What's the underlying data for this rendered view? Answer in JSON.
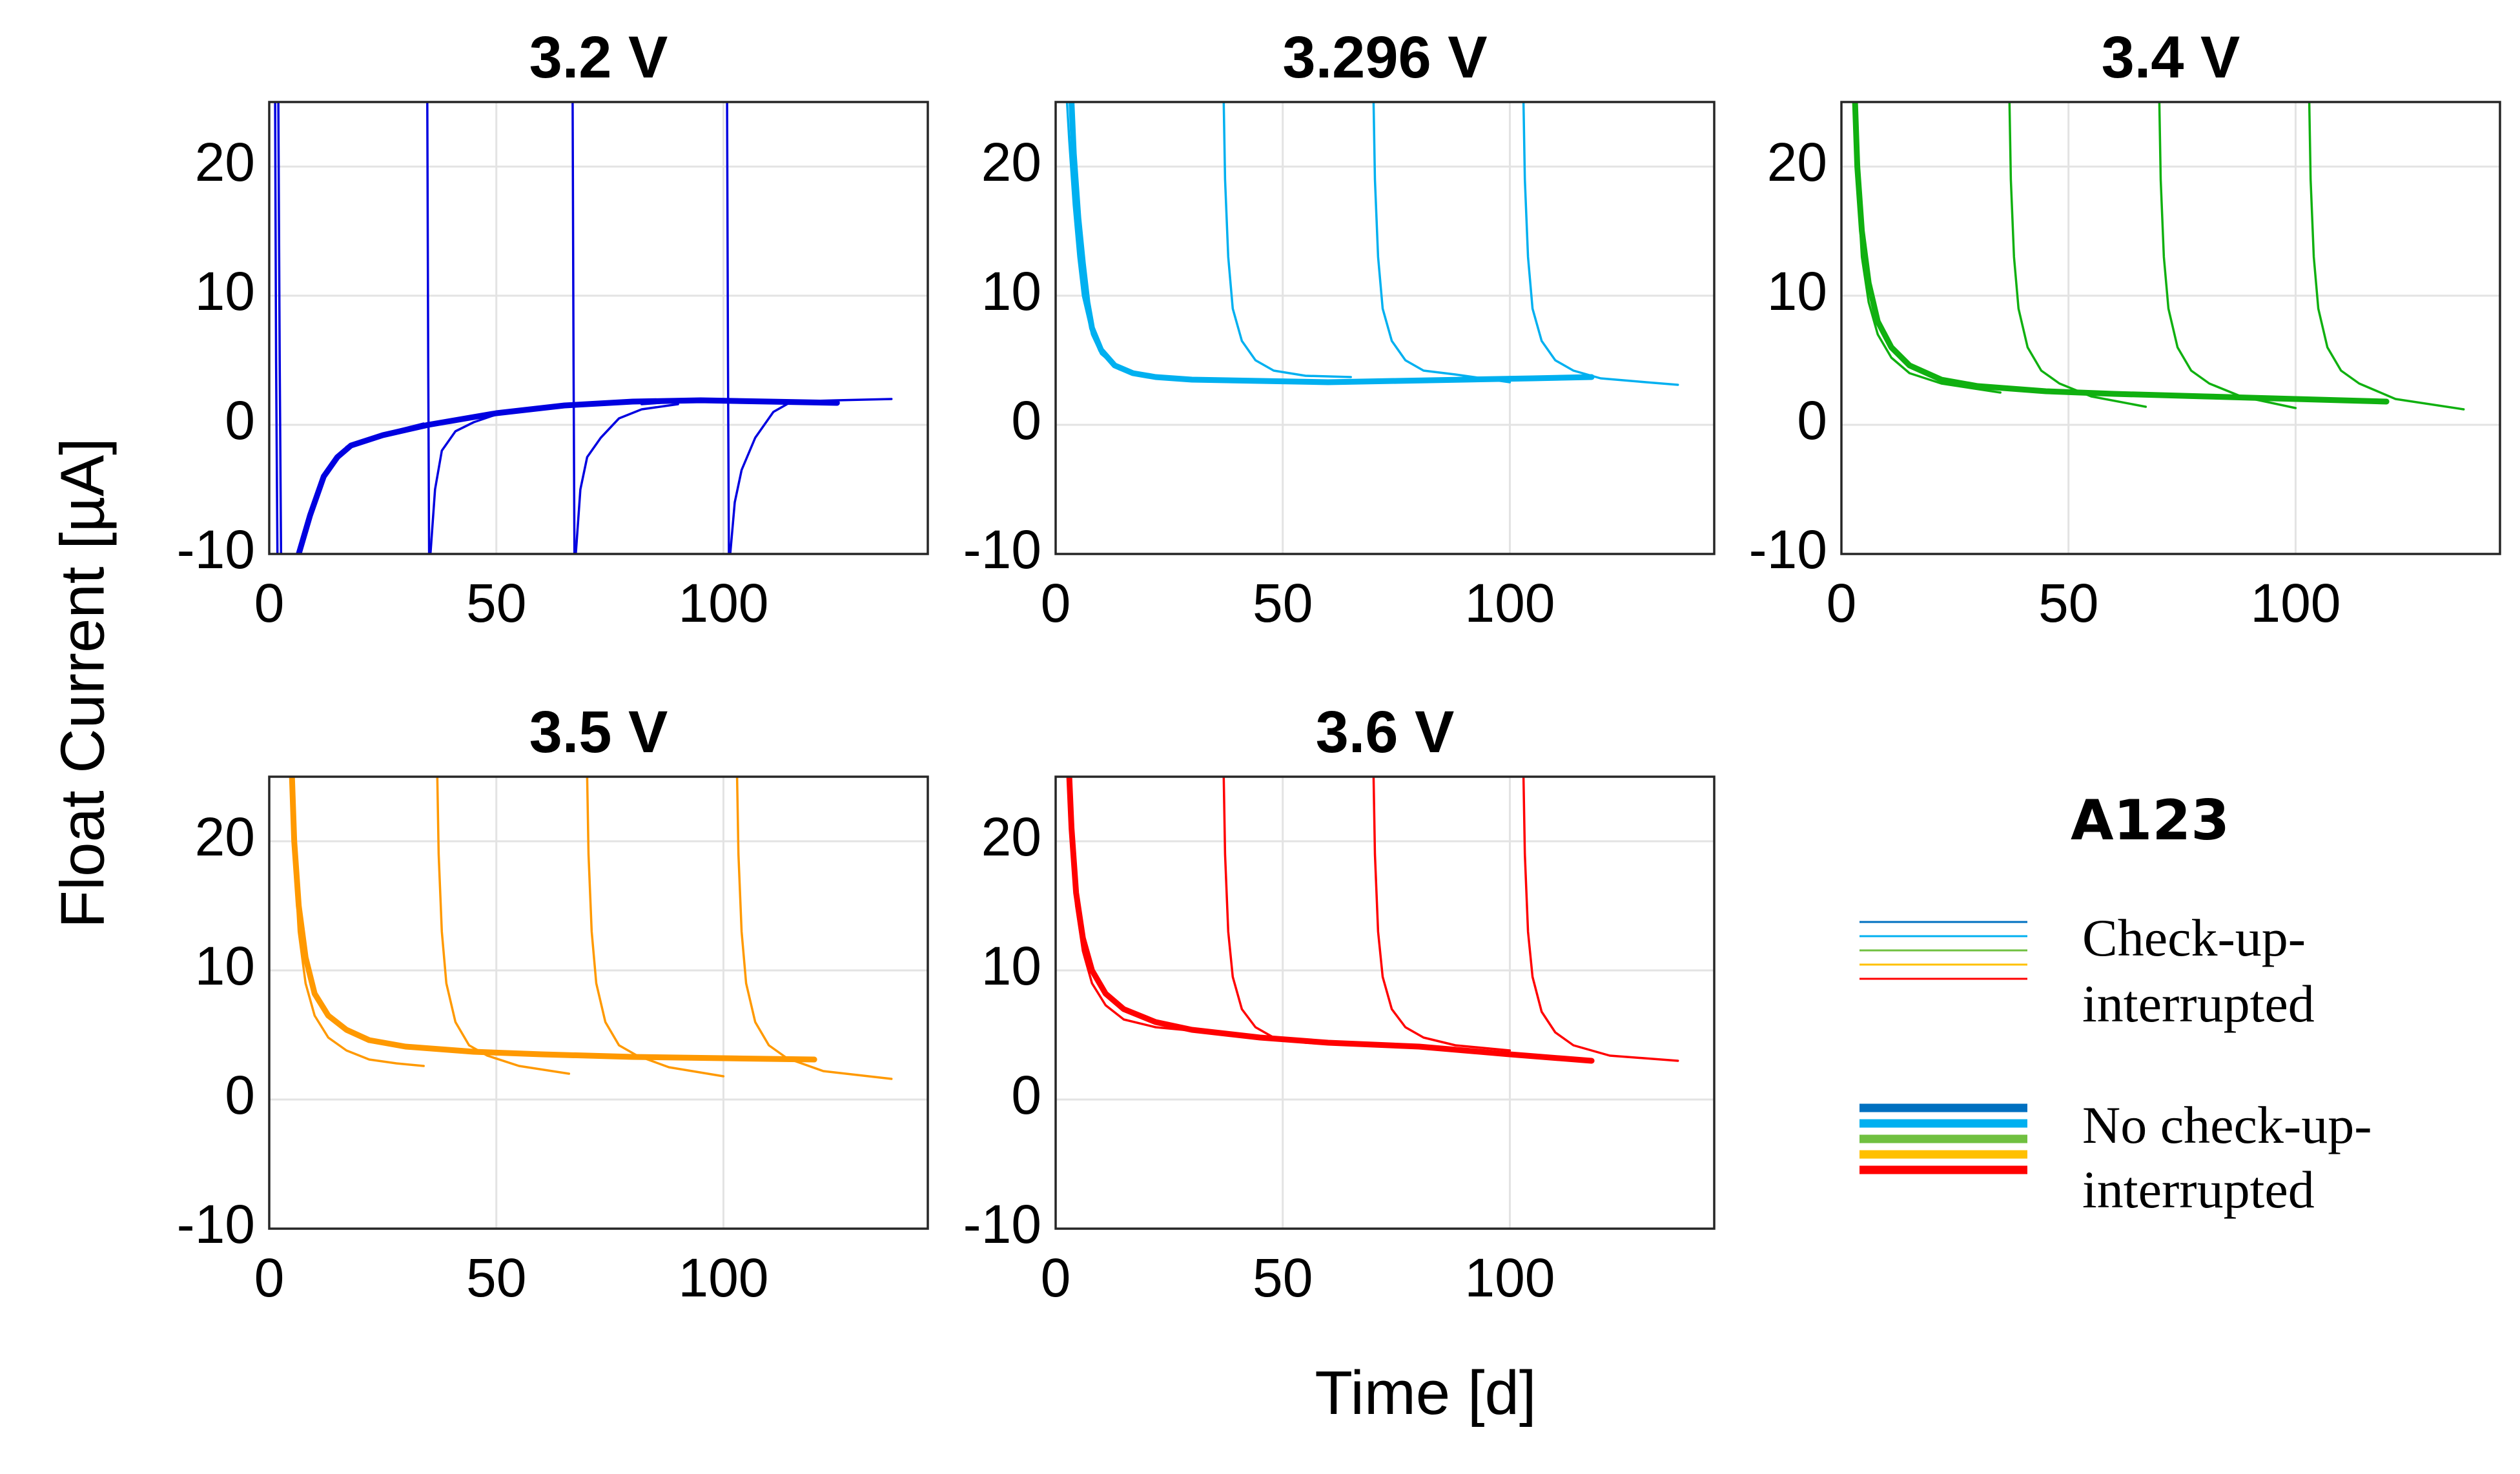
{
  "figure": {
    "xlabel": "Time [d]",
    "ylabel": "Float Current [µA]",
    "legend": {
      "title": "A123",
      "interrupted_label_line1": "Check-up-",
      "interrupted_label_line2": "interrupted",
      "continuous_label_line1": "No check-up-",
      "continuous_label_line2": "interrupted",
      "colors": [
        "#0070c0",
        "#00b0f0",
        "#70c040",
        "#ffc000",
        "#ff0000"
      ]
    }
  },
  "chart_data": [
    {
      "type": "line",
      "title": "3.2 V",
      "color": "#0000e0",
      "xlim": [
        0,
        145
      ],
      "ylim": [
        -10,
        25
      ],
      "xticks": [
        "0",
        "50",
        "100"
      ],
      "xtick_values": [
        0,
        50,
        100
      ],
      "yticks": [
        "-10",
        "0",
        "10",
        "20"
      ],
      "ytick_values": [
        -10,
        0,
        10,
        20
      ],
      "series": [
        {
          "name": "Check-up-interrupted",
          "weight": "thin",
          "x": [
            1.3,
            1.5,
            1.8
          ],
          "y": [
            25,
            5,
            -10
          ]
        },
        {
          "name": "Check-up-interrupted",
          "weight": "thin",
          "x": [
            34.8,
            35.0,
            35.2
          ],
          "y": [
            25,
            5,
            -10
          ]
        },
        {
          "name": "Check-up-interrupted",
          "weight": "thin",
          "x": [
            66.8,
            67.0,
            67.2
          ],
          "y": [
            25,
            5,
            -10
          ]
        },
        {
          "name": "Check-up-interrupted",
          "weight": "thin",
          "x": [
            100.8,
            101.0,
            101.2
          ],
          "y": [
            25,
            5,
            -10
          ]
        },
        {
          "name": "Check-up-interrupted",
          "weight": "thin",
          "x": [
            2.0,
            2.3,
            2.6
          ],
          "y": [
            25,
            5,
            -10
          ]
        },
        {
          "name": "Check-up-interrupted",
          "weight": "thin",
          "x": [
            35.5,
            36.5,
            38,
            41,
            45,
            50
          ],
          "y": [
            -10,
            -5,
            -2,
            -0.5,
            0.2,
            0.8
          ]
        },
        {
          "name": "Check-up-interrupted",
          "weight": "thin",
          "x": [
            67.5,
            68.5,
            70,
            73,
            77,
            82,
            90
          ],
          "y": [
            -10,
            -5,
            -2.5,
            -1,
            0.5,
            1.2,
            1.6
          ]
        },
        {
          "name": "Check-up-interrupted",
          "weight": "thin",
          "x": [
            101.5,
            102.5,
            104,
            107,
            111,
            115
          ],
          "y": [
            -10,
            -6,
            -3.5,
            -1,
            1,
            1.8
          ]
        },
        {
          "name": "Check-up-interrupted",
          "weight": "thin",
          "x": [
            17,
            25,
            34
          ],
          "y": [
            -1.7,
            -0.7,
            0.1
          ]
        },
        {
          "name": "Check-up-interrupted",
          "weight": "thin",
          "x": [
            50,
            57,
            66
          ],
          "y": [
            0.8,
            1.2,
            1.6
          ]
        },
        {
          "name": "Check-up-interrupted",
          "weight": "thin",
          "x": [
            82,
            90,
            100
          ],
          "y": [
            1.6,
            1.8,
            1.9
          ]
        },
        {
          "name": "Check-up-interrupted",
          "weight": "thin",
          "x": [
            115,
            125,
            137
          ],
          "y": [
            1.8,
            1.9,
            2.0
          ]
        },
        {
          "name": "No check-up-interrupted",
          "weight": "thick",
          "x": [
            6.5,
            9,
            12,
            15,
            18,
            25,
            35,
            50,
            65,
            80,
            95,
            110,
            125
          ],
          "y": [
            -10,
            -7,
            -4,
            -2.5,
            -1.6,
            -0.8,
            0,
            0.9,
            1.5,
            1.8,
            1.9,
            1.8,
            1.7
          ]
        }
      ]
    },
    {
      "type": "line",
      "title": "3.296 V",
      "color": "#00b0f0",
      "xlim": [
        0,
        145
      ],
      "ylim": [
        -10,
        25
      ],
      "xticks": [
        "0",
        "50",
        "100"
      ],
      "xtick_values": [
        0,
        50,
        100
      ],
      "yticks": [
        "-10",
        "0",
        "10",
        "20"
      ],
      "ytick_values": [
        -10,
        0,
        10,
        20
      ],
      "series": [
        {
          "name": "Check-up-interrupted",
          "weight": "thin",
          "x": [
            2.5,
            3,
            4,
            5,
            6,
            8,
            10,
            14,
            20,
            30,
            34
          ],
          "y": [
            25,
            22,
            17,
            13,
            10,
            7,
            5.5,
            4.3,
            3.8,
            3.6,
            3.5
          ]
        },
        {
          "name": "Check-up-interrupted",
          "weight": "thin",
          "x": [
            37,
            37.3,
            38,
            39,
            41,
            44,
            48,
            55,
            65
          ],
          "y": [
            25,
            19,
            13,
            9,
            6.5,
            5,
            4.2,
            3.8,
            3.7
          ]
        },
        {
          "name": "Check-up-interrupted",
          "weight": "thin",
          "x": [
            70,
            70.3,
            71,
            72,
            74,
            77,
            81,
            88,
            100
          ],
          "y": [
            25,
            19,
            13,
            9,
            6.5,
            5,
            4.2,
            3.9,
            3.3
          ]
        },
        {
          "name": "Check-up-interrupted",
          "weight": "thin",
          "x": [
            103,
            103.3,
            104,
            105,
            107,
            110,
            114,
            120,
            130,
            137
          ],
          "y": [
            25,
            19,
            13,
            9,
            6.5,
            5,
            4.2,
            3.6,
            3.3,
            3.1
          ]
        },
        {
          "name": "No check-up-interrupted",
          "weight": "thick",
          "x": [
            3.5,
            4,
            5,
            6,
            7,
            8,
            10,
            13,
            17,
            22,
            30,
            45,
            60,
            75,
            90,
            105,
            118
          ],
          "y": [
            25,
            21,
            16,
            12.5,
            9.5,
            7.5,
            5.8,
            4.6,
            4.0,
            3.7,
            3.5,
            3.4,
            3.3,
            3.4,
            3.5,
            3.6,
            3.7
          ]
        }
      ]
    },
    {
      "type": "line",
      "title": "3.4 V",
      "color": "#10b010",
      "xlim": [
        0,
        145
      ],
      "ylim": [
        -10,
        25
      ],
      "xticks": [
        "0",
        "50",
        "100"
      ],
      "xtick_values": [
        0,
        50,
        100
      ],
      "yticks": [
        "-10",
        "0",
        "10",
        "20"
      ],
      "ytick_values": [
        -10,
        0,
        10,
        20
      ],
      "series": [
        {
          "name": "Check-up-interrupted",
          "weight": "thin",
          "x": [
            3,
            3.5,
            4.5,
            6,
            8,
            11,
            15,
            22,
            35
          ],
          "y": [
            25,
            19,
            13,
            9.5,
            7,
            5.2,
            4,
            3.2,
            2.5
          ]
        },
        {
          "name": "Check-up-interrupted",
          "weight": "thin",
          "x": [
            37,
            37.3,
            38,
            39,
            41,
            44,
            48,
            55,
            67
          ],
          "y": [
            25,
            19,
            13,
            9,
            6,
            4.2,
            3.2,
            2.2,
            1.4
          ]
        },
        {
          "name": "Check-up-interrupted",
          "weight": "thin",
          "x": [
            70,
            70.3,
            71,
            72,
            74,
            77,
            81,
            88,
            100
          ],
          "y": [
            25,
            19,
            13,
            9,
            6,
            4.2,
            3.2,
            2.2,
            1.3
          ]
        },
        {
          "name": "Check-up-interrupted",
          "weight": "thin",
          "x": [
            103,
            103.3,
            104,
            105,
            107,
            110,
            114,
            122,
            137
          ],
          "y": [
            25,
            19,
            13,
            9,
            6,
            4.2,
            3.2,
            2,
            1.2
          ]
        },
        {
          "name": "No check-up-interrupted",
          "weight": "thick",
          "x": [
            3,
            3.5,
            4.5,
            6,
            8,
            11,
            15,
            22,
            30,
            45,
            60,
            80,
            100,
            120
          ],
          "y": [
            25,
            20,
            15,
            11,
            8,
            6,
            4.6,
            3.5,
            3.0,
            2.6,
            2.4,
            2.2,
            2.0,
            1.8
          ]
        }
      ]
    },
    {
      "type": "line",
      "title": "3.5 V",
      "color": "#ff9900",
      "xlim": [
        0,
        145
      ],
      "ylim": [
        -10,
        25
      ],
      "xticks": [
        "0",
        "50",
        "100"
      ],
      "xtick_values": [
        0,
        50,
        100
      ],
      "yticks": [
        "-10",
        "0",
        "10",
        "20"
      ],
      "ytick_values": [
        -10,
        0,
        10,
        20
      ],
      "series": [
        {
          "name": "Check-up-interrupted",
          "weight": "thin",
          "x": [
            5,
            5.5,
            6.5,
            8,
            10,
            13,
            17,
            22,
            28,
            34
          ],
          "y": [
            25,
            19,
            13,
            9,
            6.5,
            4.8,
            3.8,
            3.1,
            2.8,
            2.6
          ]
        },
        {
          "name": "Check-up-interrupted",
          "weight": "thin",
          "x": [
            37,
            37.3,
            38,
            39,
            41,
            44,
            48,
            55,
            66
          ],
          "y": [
            25,
            19,
            13,
            9,
            6,
            4.2,
            3.4,
            2.6,
            2.0
          ]
        },
        {
          "name": "Check-up-interrupted",
          "weight": "thin",
          "x": [
            70,
            70.3,
            71,
            72,
            74,
            77,
            81,
            88,
            100
          ],
          "y": [
            25,
            19,
            13,
            9,
            6,
            4.2,
            3.4,
            2.5,
            1.8
          ]
        },
        {
          "name": "Check-up-interrupted",
          "weight": "thin",
          "x": [
            103,
            103.3,
            104,
            105,
            107,
            110,
            114,
            122,
            137
          ],
          "y": [
            25,
            19,
            13,
            9,
            6,
            4.2,
            3.2,
            2.2,
            1.6
          ]
        },
        {
          "name": "No check-up-interrupted",
          "weight": "thick",
          "x": [
            5,
            5.5,
            6.5,
            8,
            10,
            13,
            17,
            22,
            30,
            45,
            60,
            80,
            100,
            120
          ],
          "y": [
            25,
            20,
            15,
            11,
            8.2,
            6.5,
            5.4,
            4.6,
            4.1,
            3.7,
            3.5,
            3.3,
            3.2,
            3.1
          ]
        }
      ]
    },
    {
      "type": "line",
      "title": "3.6 V",
      "color": "#ff0000",
      "xlim": [
        0,
        145
      ],
      "ylim": [
        -10,
        25
      ],
      "xticks": [
        "0",
        "50",
        "100"
      ],
      "xtick_values": [
        0,
        50,
        100
      ],
      "yticks": [
        "-10",
        "0",
        "10",
        "20"
      ],
      "ytick_values": [
        -10,
        0,
        10,
        20
      ],
      "series": [
        {
          "name": "Check-up-interrupted",
          "weight": "thin",
          "x": [
            3,
            3.5,
            4.5,
            6,
            8,
            11,
            15,
            22,
            34
          ],
          "y": [
            25,
            20,
            15,
            11.5,
            9,
            7.3,
            6.2,
            5.6,
            5.2
          ]
        },
        {
          "name": "Check-up-interrupted",
          "weight": "thin",
          "x": [
            37,
            37.3,
            38,
            39,
            41,
            44,
            48,
            55,
            66
          ],
          "y": [
            25,
            19,
            13,
            9.5,
            7,
            5.6,
            4.8,
            4.4,
            4.2
          ]
        },
        {
          "name": "Check-up-interrupted",
          "weight": "thin",
          "x": [
            70,
            70.3,
            71,
            72,
            74,
            77,
            81,
            88,
            100
          ],
          "y": [
            25,
            19,
            13,
            9.5,
            7,
            5.6,
            4.8,
            4.2,
            3.8
          ]
        },
        {
          "name": "Check-up-interrupted",
          "weight": "thin",
          "x": [
            103,
            103.3,
            104,
            105,
            107,
            110,
            114,
            122,
            137
          ],
          "y": [
            25,
            19,
            13,
            9.5,
            6.8,
            5.2,
            4.2,
            3.4,
            3.0
          ]
        },
        {
          "name": "No check-up-interrupted",
          "weight": "thick",
          "x": [
            3,
            3.5,
            4.5,
            6,
            8,
            11,
            15,
            22,
            30,
            45,
            60,
            80,
            100,
            118
          ],
          "y": [
            25,
            21,
            16,
            12.5,
            10,
            8.2,
            7,
            6,
            5.4,
            4.8,
            4.4,
            4.1,
            3.5,
            3.0
          ]
        }
      ]
    }
  ]
}
